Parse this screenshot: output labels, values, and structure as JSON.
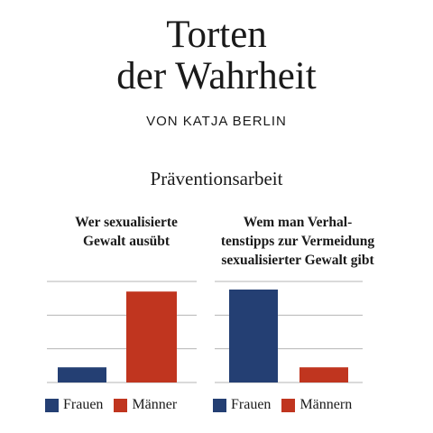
{
  "header": {
    "title_line1": "Torten",
    "title_line2": "der Wahrheit",
    "author": "VON KATJA BERLIN",
    "subtitle": "Präventionsarbeit"
  },
  "colors": {
    "frauen": "#243f73",
    "maenner": "#c0351f",
    "grid": "#b5b5b5"
  },
  "chart_data": [
    {
      "type": "bar",
      "title": "Wer sexualisierte Gewalt ausübt",
      "title_lines": [
        "Wer sexualisierte",
        "Gewalt ausübt"
      ],
      "categories": [
        "Frauen",
        "Männer"
      ],
      "values": [
        15,
        90
      ],
      "ylim": [
        0,
        100
      ],
      "grid": true,
      "xlabel": "",
      "ylabel": "",
      "legend": [
        "Frauen",
        "Männer"
      ],
      "legend_position": "bottom"
    },
    {
      "type": "bar",
      "title": "Wem man Verhaltenstipps zur Vermeidung sexualisierter Gewalt gibt",
      "title_lines": [
        "Wem man Verhal-",
        "tenstipps zur Vermeidung",
        "sexualisierter Gewalt gibt"
      ],
      "categories": [
        "Frauen",
        "Männern"
      ],
      "values": [
        92,
        15
      ],
      "ylim": [
        0,
        100
      ],
      "grid": true,
      "xlabel": "",
      "ylabel": "",
      "legend": [
        "Frauen",
        "Männern"
      ],
      "legend_position": "bottom"
    }
  ]
}
